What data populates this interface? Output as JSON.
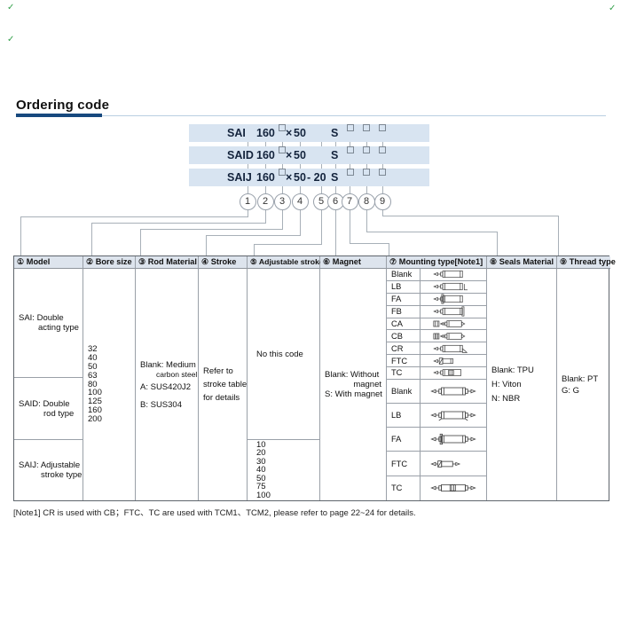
{
  "decor": {
    "mark": "✓",
    "color": "#33a04a"
  },
  "title": "Ordering code",
  "code_rows": [
    {
      "model": "SAI",
      "size": "160",
      "sep": "×",
      "stroke": "50",
      "adj": "",
      "magnet": "S"
    },
    {
      "model": "SAID",
      "size": "160",
      "sep": "×",
      "stroke": "50",
      "adj": "",
      "magnet": "S"
    },
    {
      "model": "SAIJ",
      "size": "160",
      "sep": "×",
      "stroke": "50",
      "adj": "- 20",
      "magnet": "S"
    }
  ],
  "circles": [
    "1",
    "2",
    "3",
    "4",
    "5",
    "6",
    "7",
    "8",
    "9"
  ],
  "table": {
    "headers": [
      "① Model",
      "② Bore size",
      "③ Rod Material",
      "④ Stroke",
      "⑤ Adjustable stroke",
      "⑥ Magnet",
      "⑦ Mounting type[Note1]",
      "⑧ Seals Material",
      "⑨ Thread type"
    ],
    "model_cells": [
      {
        "line1": "SAI: Double",
        "line2": "acting type"
      },
      {
        "line1": "SAID: Double",
        "line2": "rod type"
      },
      {
        "line1": "SAIJ: Adjustable",
        "line2": "stroke type"
      }
    ],
    "bore_sizes": [
      "32",
      "40",
      "50",
      "63",
      "80",
      "100",
      "125",
      "160",
      "200"
    ],
    "rod_material": {
      "blank1": "Blank: Medium",
      "blank2": "carbon steel",
      "a": "A: SUS420J2",
      "b": "B: SUS304"
    },
    "stroke": {
      "l1": "Refer to",
      "l2": "stroke table",
      "l3": "for details"
    },
    "adjustable_stroke": {
      "top": "No this code",
      "values": [
        "10",
        "20",
        "30",
        "40",
        "50",
        "75",
        "100"
      ]
    },
    "magnet": {
      "l1": "Blank: Without",
      "l2": "magnet",
      "l3": "S: With magnet"
    },
    "mounting_group_a": [
      {
        "label": "Blank",
        "icon": "cylinder-basic"
      },
      {
        "label": "LB",
        "icon": "cylinder-foot-bracket"
      },
      {
        "label": "FA",
        "icon": "cylinder-front-flange"
      },
      {
        "label": "FB",
        "icon": "cylinder-rear-flange"
      },
      {
        "label": "CA",
        "icon": "cylinder-clevis-ca"
      },
      {
        "label": "CB",
        "icon": "cylinder-clevis-cb"
      },
      {
        "label": "CR",
        "icon": "cylinder-pivot-cr"
      },
      {
        "label": "FTC",
        "icon": "cylinder-compact-ftc"
      },
      {
        "label": "TC",
        "icon": "cylinder-trunnion-tc"
      }
    ],
    "mounting_group_b": [
      {
        "label": "Blank",
        "icon": "double-rod-basic"
      },
      {
        "label": "LB",
        "icon": "double-rod-foot"
      },
      {
        "label": "FA",
        "icon": "double-rod-flange"
      },
      {
        "label": "FTC",
        "icon": "double-rod-compact"
      },
      {
        "label": "TC",
        "icon": "double-rod-trunnion"
      }
    ],
    "seals_material": {
      "l1": "Blank: TPU",
      "l2": "H: Viton",
      "l3": "N: NBR"
    },
    "thread_type": {
      "l1": "Blank: PT",
      "l2": "G: G"
    }
  },
  "note": "[Note1] CR is used with CB；FTC、TC are used with TCM1、TCM2, please refer to page 22~24 for details."
}
